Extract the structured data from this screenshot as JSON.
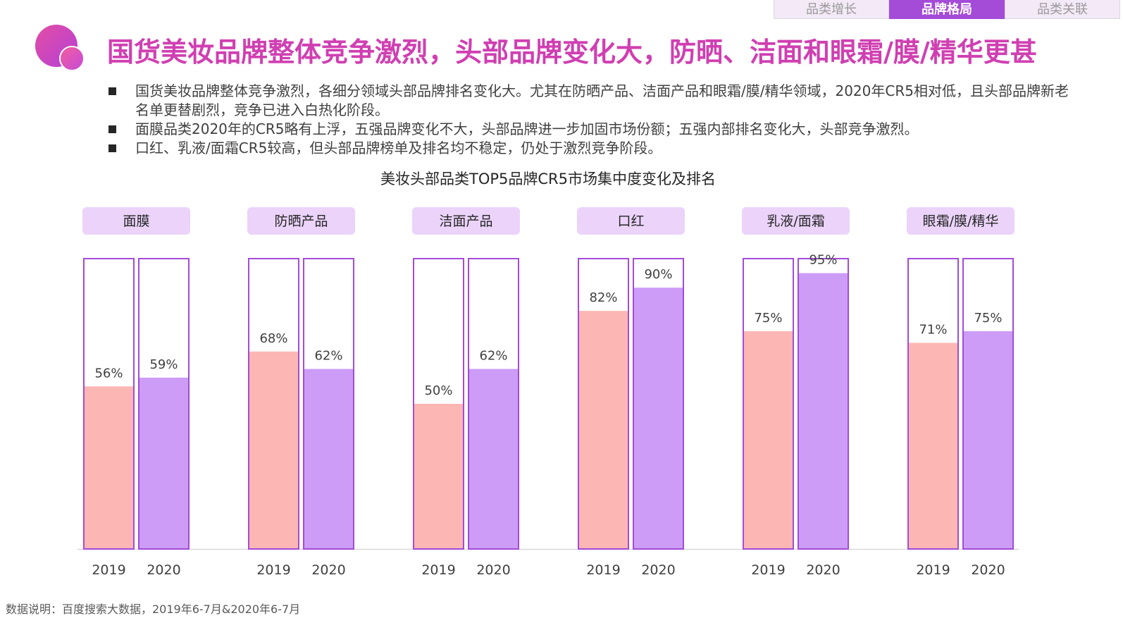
{
  "nav": {
    "tabs": [
      {
        "label": "品类增长",
        "active": false
      },
      {
        "label": "品牌格局",
        "active": true
      },
      {
        "label": "品类关联",
        "active": false
      }
    ]
  },
  "header": {
    "title": "国货美妆品牌整体竞争激烈，头部品牌变化大，防晒、洁面和眼霜/膜/精华更甚"
  },
  "bullets": [
    "国货美妆品牌整体竞争激烈，各细分领域头部品牌排名变化大。尤其在防晒产品、洁面产品和眼霜/膜/精华领域，2020年CR5相对低，且头部品牌新老名单更替剧烈，竞争已进入白热化阶段。",
    "面膜品类2020年的CR5略有上浮，五强品牌变化不大，头部品牌进一步加固市场份额；五强内部排名变化大，头部竞争激烈。",
    "口红、乳液/面霜CR5较高，但头部品牌榜单及排名均不稳定，仍处于激烈竞争阶段。"
  ],
  "chart_data": {
    "type": "bar",
    "title": "美妆头部品类TOP5品牌CR5市场集中度变化及排名",
    "unit": "%",
    "ylim": [
      0,
      100
    ],
    "grid": false,
    "categories": [
      "面膜",
      "防晒产品",
      "洁面产品",
      "口红",
      "乳液/面霜",
      "眼霜/膜/精华"
    ],
    "series": [
      {
        "name": "2019",
        "color": "#fcb7b4",
        "values": [
          56,
          68,
          50,
          82,
          75,
          71
        ]
      },
      {
        "name": "2020",
        "color": "#cc9cf7",
        "values": [
          59,
          62,
          62,
          90,
          95,
          75
        ]
      }
    ],
    "colors": {
      "outline": "#a44bd8",
      "label_bg": "#ebd3fa",
      "axis": "#d9d9d9"
    }
  },
  "footnote": "数据说明：百度搜索大数据，2019年6-7月&2020年6-7月"
}
